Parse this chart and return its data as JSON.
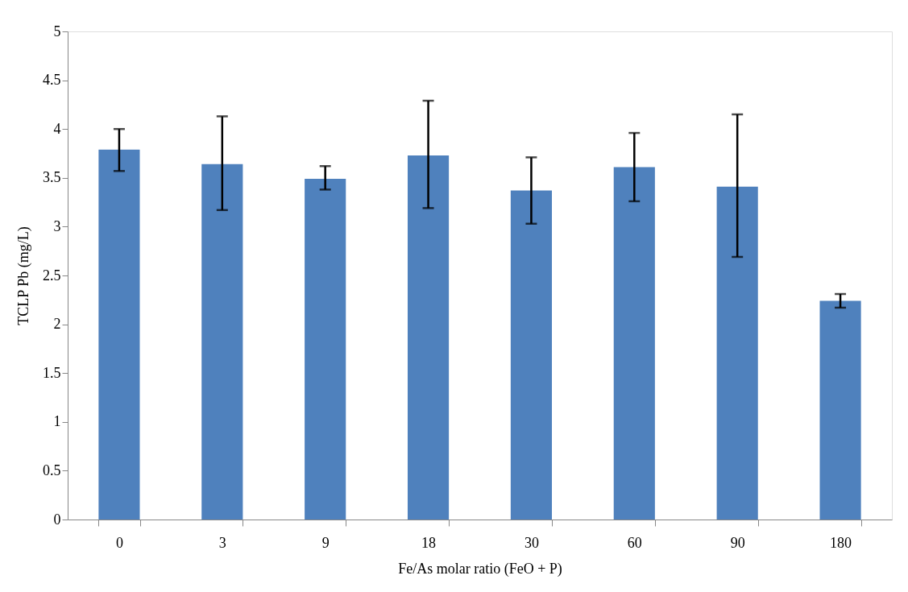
{
  "chart_data": {
    "type": "bar",
    "xlabel": "Fe/As molar ratio (FeO + P)",
    "ylabel": "TCLP Pb (mg/L)",
    "categories": [
      "0",
      "3",
      "9",
      "18",
      "30",
      "60",
      "90",
      "180"
    ],
    "values": [
      3.79,
      3.64,
      3.49,
      3.73,
      3.37,
      3.61,
      3.41,
      2.24
    ],
    "errors": [
      [
        3.57,
        4.0
      ],
      [
        3.17,
        4.13
      ],
      [
        3.38,
        3.62
      ],
      [
        3.19,
        4.29
      ],
      [
        3.03,
        3.71
      ],
      [
        3.26,
        3.96
      ],
      [
        2.69,
        4.15
      ],
      [
        2.17,
        2.31
      ]
    ],
    "color": "#4f81bd",
    "ylim": [
      0,
      5
    ],
    "yticks": [
      0,
      0.5,
      1,
      1.5,
      2,
      2.5,
      3,
      3.5,
      4,
      4.5,
      5
    ],
    "grid": false
  }
}
